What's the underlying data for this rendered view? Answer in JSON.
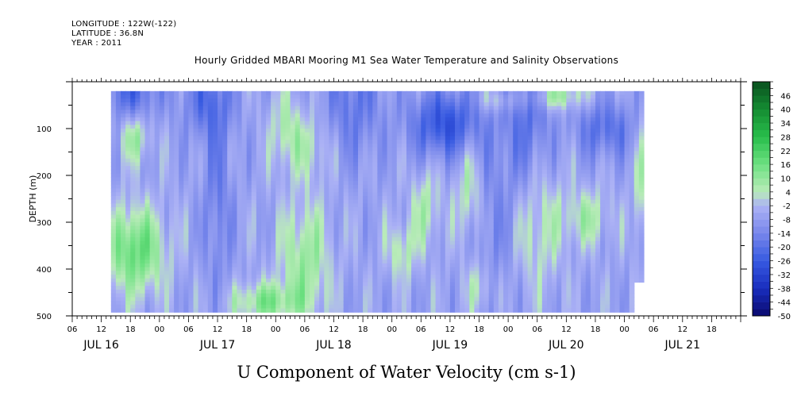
{
  "header": {
    "longitude": "LONGITUDE : 122W(-122)",
    "latitude": "LATITUDE : 36.8N",
    "year": "YEAR : 2011"
  },
  "chart_data": {
    "type": "heatmap",
    "title": "Hourly Gridded MBARI Mooring M1 Sea Water Temperature and Salinity Observations",
    "xlabel": "U Component of Water Velocity (cm s-1)",
    "ylabel": "DEPTH (m)",
    "x_axis": {
      "start": "JUL 16 06:00",
      "end": "JUL 22 00:00",
      "hour_tick_labels": [
        "06",
        "12",
        "18",
        "00",
        "06",
        "12",
        "18",
        "00",
        "06",
        "12",
        "18",
        "00",
        "06",
        "12",
        "18",
        "00",
        "06",
        "12",
        "18",
        "00",
        "06",
        "12",
        "18"
      ],
      "day_labels": [
        "JUL 16",
        "JUL 17",
        "JUL 18",
        "JUL 19",
        "JUL 20",
        "JUL 21"
      ]
    },
    "y_axis": {
      "range": [
        0,
        500
      ],
      "reversed": true,
      "tick_labels": [
        "100",
        "200",
        "300",
        "400",
        "500"
      ]
    },
    "data_coverage": {
      "time_start": "JUL 16 14:00",
      "time_end": "JUL 20 04:00",
      "depth_min": 20,
      "depth_max": 485
    },
    "colorbar": {
      "labels": [
        "46",
        "40",
        "34",
        "28",
        "22",
        "16",
        "10",
        "4",
        "-2",
        "-8",
        "-14",
        "-20",
        "-26",
        "-32",
        "-38",
        "-44",
        "-50"
      ],
      "min": -50,
      "max": 52,
      "step": 3
    },
    "colors": {
      "blue": "#3b5fd8",
      "lavender": "#a7aef0",
      "light_green": "#9ee89e",
      "green": "#3fd86a"
    },
    "field_description": "U velocity field, values mostly between -26 and 22 cm/s; negative (blue) bands near the surface on JUL 16, JUL 17 and JUL 19, positive (green) patches at depth near JUL 16 18h, JUL 18 00h and JUL 19 00h"
  }
}
